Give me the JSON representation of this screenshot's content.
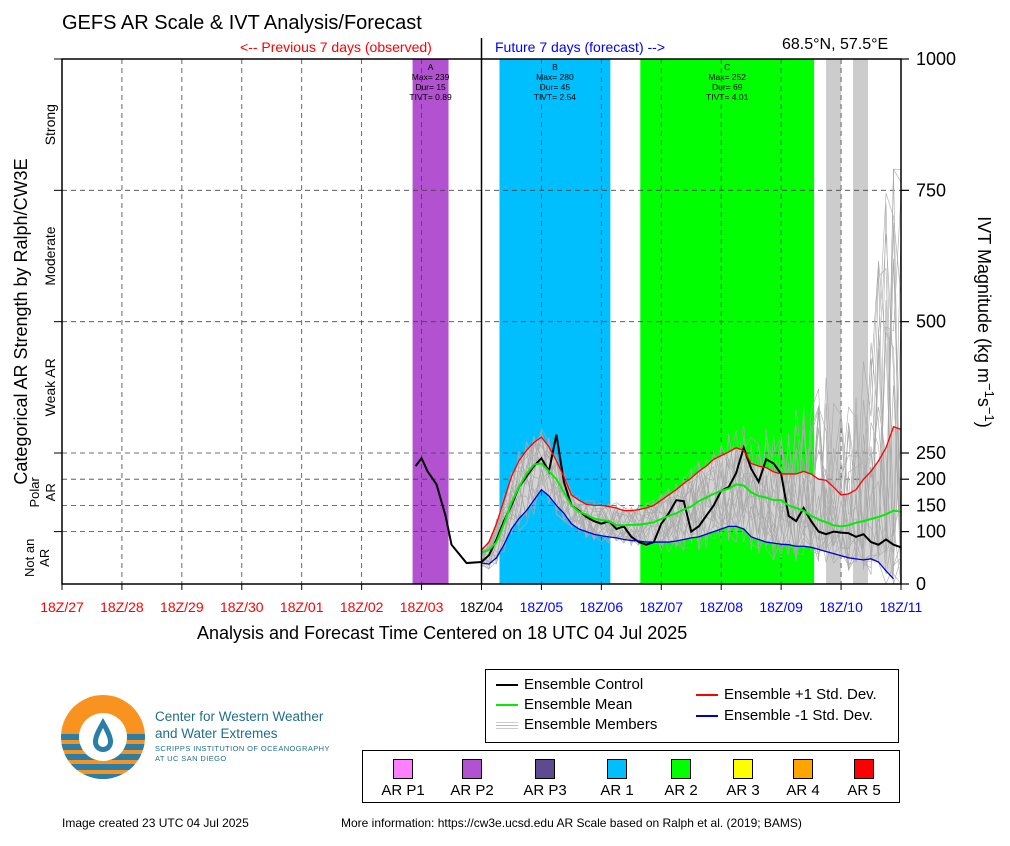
{
  "header": {
    "title": "GEFS AR Scale & IVT Analysis/Forecast",
    "previous_label": "<-- Previous 7 days (observed)",
    "future_label": "Future 7 days (forecast) -->",
    "location": "68.5°N, 57.5°E"
  },
  "chart_data": {
    "type": "line",
    "xlabel": "Analysis and Forecast Time Centered on 18 UTC 04 Jul 2025",
    "ylabel_left": "Categorical AR Strength by Ralph/CW3E",
    "ylabel_right": "IVT Magnitude (kg m−1s−1)",
    "ylabel_right_main": "IVT Magnitude (kg m",
    "ylabel_right_sup1": "−1",
    "ylabel_right_mid": "s",
    "ylabel_right_sup2": "−1",
    "ylabel_right_end": ")",
    "x_range_days": [
      -7,
      7
    ],
    "ylim": [
      0,
      1000
    ],
    "scale_break_value": 250,
    "x_ticks": [
      {
        "d": -7,
        "label": "18Z/27",
        "color": "#ff0000"
      },
      {
        "d": -6,
        "label": "18Z/28",
        "color": "#ff0000"
      },
      {
        "d": -5,
        "label": "18Z/29",
        "color": "#ff0000"
      },
      {
        "d": -4,
        "label": "18Z/30",
        "color": "#ff0000"
      },
      {
        "d": -3,
        "label": "18Z/01",
        "color": "#ff0000"
      },
      {
        "d": -2,
        "label": "18Z/02",
        "color": "#ff0000"
      },
      {
        "d": -1,
        "label": "18Z/03",
        "color": "#ff0000"
      },
      {
        "d": 0,
        "label": "18Z/04",
        "color": "#000000"
      },
      {
        "d": 1,
        "label": "18Z/05",
        "color": "#0000ff"
      },
      {
        "d": 2,
        "label": "18Z/06",
        "color": "#0000ff"
      },
      {
        "d": 3,
        "label": "18Z/07",
        "color": "#0000ff"
      },
      {
        "d": 4,
        "label": "18Z/08",
        "color": "#0000ff"
      },
      {
        "d": 5,
        "label": "18Z/09",
        "color": "#0000ff"
      },
      {
        "d": 6,
        "label": "18Z/10",
        "color": "#0000ff"
      },
      {
        "d": 7,
        "label": "18Z/11",
        "color": "#0000ff"
      }
    ],
    "y_ticks": [
      0,
      100,
      150,
      200,
      250,
      500,
      750,
      1000
    ],
    "categories": [
      {
        "label": "Strong",
        "from": 750,
        "to": 1000
      },
      {
        "label": "Moderate",
        "from": 500,
        "to": 750
      },
      {
        "label": "Weak AR",
        "from": 250,
        "to": 500
      },
      {
        "label": "Polar AR",
        "from": 100,
        "to": 250
      },
      {
        "label": "Not an AR",
        "from": 0,
        "to": 100
      }
    ],
    "ar_events": [
      {
        "id": "A",
        "start": -1.15,
        "end": -0.55,
        "color": "#b252d0",
        "rank": "AR P2",
        "max": "Max= 239",
        "dur": "Dur= 15",
        "tivt": "TIVT= 0.89"
      },
      {
        "id": "B",
        "start": 0.3,
        "end": 2.15,
        "color": "#00bfff",
        "rank": "AR 1",
        "max": "Max= 280",
        "dur": "Dur= 45",
        "tivt": "TIVT= 2.54"
      },
      {
        "id": "C",
        "start": 2.65,
        "end": 5.55,
        "color": "#00ff00",
        "rank": "AR 2",
        "max": "Max= 252",
        "dur": "Dur= 69",
        "tivt": "TIVT= 4.01"
      }
    ],
    "gray_bars": [
      [
        5.75,
        6.0
      ],
      [
        6.2,
        6.45
      ]
    ],
    "series": [
      {
        "name": "Ensemble Control",
        "color": "#000000",
        "x": [
          -1.1,
          -1.0,
          -0.9,
          -0.75,
          -0.6,
          -0.5,
          -0.25,
          0.0,
          0.125,
          0.25,
          0.375,
          0.5,
          0.625,
          0.75,
          0.875,
          1.0,
          1.125,
          1.25,
          1.375,
          1.5,
          1.625,
          1.75,
          1.875,
          2.0,
          2.125,
          2.25,
          2.375,
          2.5,
          2.625,
          2.75,
          2.875,
          3.0,
          3.125,
          3.25,
          3.375,
          3.5,
          3.625,
          3.75,
          3.875,
          4.0,
          4.125,
          4.25,
          4.375,
          4.5,
          4.625,
          4.75,
          4.875,
          5.0,
          5.125,
          5.25,
          5.375,
          5.5,
          5.625,
          5.75,
          5.875,
          6.0,
          6.125,
          6.25,
          6.375,
          6.5,
          6.625,
          6.75,
          6.875,
          7.0
        ],
        "y": [
          225,
          240,
          215,
          190,
          130,
          75,
          40,
          42,
          55,
          85,
          120,
          150,
          185,
          205,
          225,
          240,
          215,
          285,
          195,
          150,
          140,
          128,
          120,
          115,
          120,
          105,
          110,
          90,
          80,
          75,
          80,
          115,
          135,
          160,
          158,
          100,
          110,
          130,
          150,
          178,
          185,
          212,
          260,
          220,
          195,
          238,
          230,
          210,
          130,
          120,
          145,
          120,
          100,
          95,
          100,
          98,
          97,
          90,
          95,
          80,
          75,
          85,
          75,
          70
        ]
      },
      {
        "name": "Ensemble Mean",
        "color": "#00ee00",
        "x": [
          0.0,
          0.125,
          0.25,
          0.375,
          0.5,
          0.625,
          0.75,
          0.875,
          1.0,
          1.125,
          1.25,
          1.375,
          1.5,
          1.625,
          1.75,
          1.875,
          2.0,
          2.125,
          2.25,
          2.375,
          2.5,
          2.625,
          2.75,
          2.875,
          3.0,
          3.125,
          3.25,
          3.375,
          3.5,
          3.625,
          3.75,
          3.875,
          4.0,
          4.125,
          4.25,
          4.375,
          4.5,
          4.625,
          4.75,
          4.875,
          5.0,
          5.125,
          5.25,
          5.375,
          5.5,
          5.625,
          5.75,
          5.875,
          6.0,
          6.125,
          6.25,
          6.375,
          6.5,
          6.625,
          6.75,
          6.875,
          7.0
        ],
        "y": [
          60,
          65,
          80,
          115,
          155,
          185,
          210,
          228,
          230,
          215,
          200,
          175,
          150,
          138,
          132,
          125,
          122,
          120,
          112,
          112,
          113,
          113,
          115,
          118,
          124,
          130,
          135,
          142,
          148,
          158,
          165,
          172,
          178,
          182,
          190,
          188,
          175,
          168,
          165,
          160,
          160,
          150,
          145,
          140,
          130,
          123,
          118,
          112,
          110,
          112,
          117,
          120,
          124,
          128,
          133,
          140,
          138
        ]
      },
      {
        "name": "Ensemble +1 Std. Dev.",
        "color": "#ff0000",
        "x": [
          0.0,
          0.125,
          0.25,
          0.375,
          0.5,
          0.625,
          0.75,
          0.875,
          1.0,
          1.125,
          1.25,
          1.375,
          1.5,
          1.625,
          1.75,
          1.875,
          2.0,
          2.125,
          2.25,
          2.375,
          2.5,
          2.625,
          2.75,
          2.875,
          3.0,
          3.125,
          3.25,
          3.375,
          3.5,
          3.625,
          3.75,
          3.875,
          4.0,
          4.125,
          4.25,
          4.375,
          4.5,
          4.625,
          4.75,
          4.875,
          5.0,
          5.125,
          5.25,
          5.375,
          5.5,
          5.625,
          5.75,
          5.875,
          6.0,
          6.125,
          6.25,
          6.375,
          6.5,
          6.625,
          6.75,
          6.875,
          7.0
        ],
        "y": [
          65,
          80,
          115,
          160,
          205,
          235,
          255,
          270,
          280,
          262,
          235,
          205,
          170,
          160,
          152,
          150,
          150,
          148,
          145,
          140,
          140,
          142,
          145,
          150,
          160,
          170,
          180,
          192,
          202,
          215,
          225,
          238,
          245,
          252,
          260,
          255,
          230,
          225,
          222,
          214,
          210,
          210,
          210,
          215,
          210,
          200,
          198,
          185,
          170,
          172,
          180,
          200,
          215,
          235,
          260,
          300,
          295
        ]
      },
      {
        "name": "Ensemble -1 Std. Dev.",
        "color": "#0000cc",
        "x": [
          0.0,
          0.125,
          0.25,
          0.375,
          0.5,
          0.625,
          0.75,
          0.875,
          1.0,
          1.125,
          1.25,
          1.375,
          1.5,
          1.625,
          1.75,
          1.875,
          2.0,
          2.125,
          2.25,
          2.375,
          2.5,
          2.625,
          2.75,
          2.875,
          3.0,
          3.125,
          3.25,
          3.375,
          3.5,
          3.625,
          3.75,
          3.875,
          4.0,
          4.125,
          4.25,
          4.375,
          4.5,
          4.625,
          4.75,
          4.875,
          5.0,
          5.125,
          5.25,
          5.375,
          5.5,
          5.625,
          5.75,
          5.875,
          6.0,
          6.125,
          6.25,
          6.375,
          6.5,
          6.625,
          6.75,
          6.875
        ],
        "y": [
          40,
          38,
          50,
          75,
          105,
          125,
          140,
          160,
          180,
          168,
          150,
          135,
          115,
          105,
          100,
          95,
          92,
          90,
          88,
          85,
          83,
          82,
          80,
          80,
          80,
          80,
          82,
          85,
          88,
          90,
          95,
          100,
          105,
          110,
          110,
          105,
          90,
          85,
          80,
          78,
          76,
          75,
          72,
          72,
          70,
          66,
          62,
          58,
          54,
          50,
          48,
          46,
          48,
          42,
          25,
          10
        ]
      }
    ]
  },
  "legend": {
    "control": "Ensemble Control",
    "mean": "Ensemble Mean",
    "members": "Ensemble Members",
    "plus": "Ensemble +1 Std. Dev.",
    "minus": "Ensemble -1 Std. Dev."
  },
  "ar_scale_legend": [
    {
      "label": "AR P1",
      "color": "#ff80ff"
    },
    {
      "label": "AR P2",
      "color": "#b252d0"
    },
    {
      "label": "AR P3",
      "color": "#5e4b8f"
    },
    {
      "label": "AR 1",
      "color": "#00bfff"
    },
    {
      "label": "AR 2",
      "color": "#00ff00"
    },
    {
      "label": "AR 3",
      "color": "#ffff00"
    },
    {
      "label": "AR 4",
      "color": "#ffa500"
    },
    {
      "label": "AR 5",
      "color": "#ff0000"
    }
  ],
  "logo": {
    "line1": "Center for Western Weather",
    "line2": "and Water Extremes",
    "sub1": "SCRIPPS INSTITUTION OF OCEANOGRAPHY",
    "sub2": "AT UC SAN DIEGO"
  },
  "footer": {
    "created": "Image created 23 UTC 04 Jul 2025",
    "more_info": "More information: https://cw3e.ucsd.edu AR Scale based on Ralph et al. (2019; BAMS)"
  }
}
